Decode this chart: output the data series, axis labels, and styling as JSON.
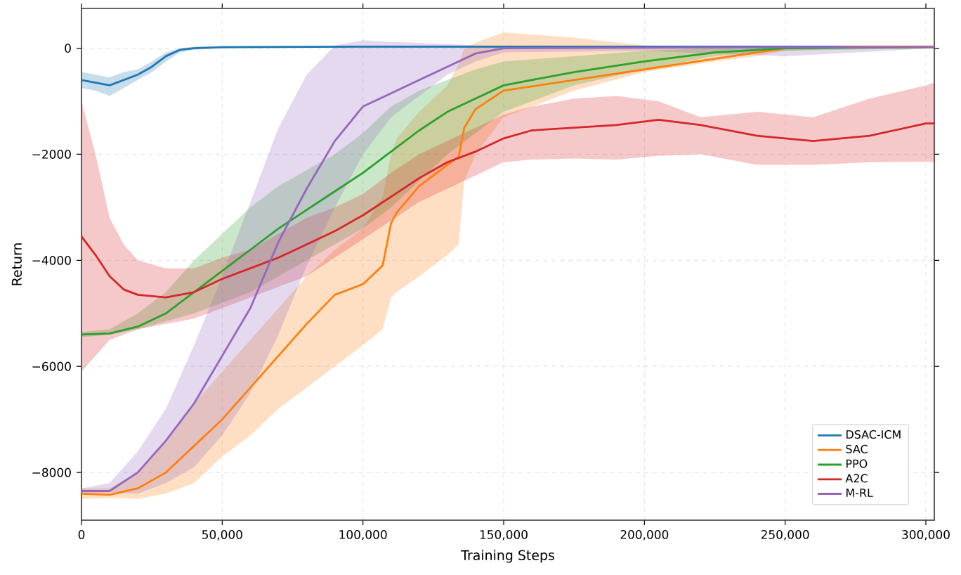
{
  "chart_data": {
    "type": "line",
    "xlabel": "Training Steps",
    "ylabel": "Return",
    "xlim": [
      0,
      303000
    ],
    "ylim": [
      -8900,
      750
    ],
    "xticks": [
      {
        "value": 0,
        "label": "0"
      },
      {
        "value": 50000,
        "label": "50,000"
      },
      {
        "value": 100000,
        "label": "100,000"
      },
      {
        "value": 150000,
        "label": "150,000"
      },
      {
        "value": 200000,
        "label": "200,000"
      },
      {
        "value": 250000,
        "label": "250,000"
      },
      {
        "value": 300000,
        "label": "300,000"
      }
    ],
    "yticks": [
      {
        "value": -8000,
        "label": "−8000"
      },
      {
        "value": -6000,
        "label": "−6000"
      },
      {
        "value": -4000,
        "label": "−4000"
      },
      {
        "value": -2000,
        "label": "−2000"
      },
      {
        "value": 0,
        "label": "0"
      }
    ],
    "grid": true,
    "legend": "bottom right",
    "line_style": "solid",
    "marker": "none",
    "series": [
      {
        "name": "DSAC-ICM",
        "color": "#1f77b4",
        "x": [
          0,
          5000,
          10000,
          15000,
          20000,
          25000,
          30000,
          35000,
          40000,
          50000,
          100000,
          150000,
          200000,
          250000,
          303000
        ],
        "values": [
          -600,
          -650,
          -700,
          -600,
          -500,
          -350,
          -150,
          -30,
          0,
          20,
          30,
          30,
          30,
          30,
          30
        ],
        "lower": [
          -750,
          -800,
          -900,
          -750,
          -600,
          -450,
          -250,
          -80,
          -30,
          0,
          10,
          10,
          10,
          10,
          10
        ],
        "upper": [
          -450,
          -500,
          -550,
          -450,
          -400,
          -250,
          -80,
          0,
          30,
          40,
          50,
          50,
          50,
          50,
          50
        ]
      },
      {
        "name": "SAC",
        "color": "#ff7f0e",
        "x": [
          0,
          10000,
          20000,
          30000,
          40000,
          50000,
          60000,
          70000,
          80000,
          90000,
          100000,
          107000,
          110000,
          112000,
          120000,
          130000,
          134000,
          136000,
          140000,
          150000,
          175000,
          200000,
          225000,
          240000,
          250000,
          275000,
          303000
        ],
        "values": [
          -8400,
          -8420,
          -8300,
          -8000,
          -7500,
          -7000,
          -6400,
          -5800,
          -5200,
          -4650,
          -4450,
          -4100,
          -3300,
          -3100,
          -2600,
          -2200,
          -2050,
          -1500,
          -1150,
          -800,
          -600,
          -400,
          -200,
          -80,
          0,
          30,
          30
        ],
        "lower": [
          -8500,
          -8480,
          -8500,
          -8400,
          -8200,
          -7700,
          -7300,
          -6800,
          -6400,
          -6000,
          -5600,
          -5300,
          -4700,
          -4600,
          -4300,
          -3900,
          -3700,
          -2500,
          -2000,
          -1300,
          -800,
          -450,
          -250,
          -150,
          -50,
          0,
          0
        ],
        "upper": [
          -8300,
          -8300,
          -8000,
          -7400,
          -6700,
          -6100,
          -5500,
          -4900,
          -4300,
          -3800,
          -3400,
          -2800,
          -2000,
          -1700,
          -1200,
          -700,
          -300,
          0,
          100,
          300,
          200,
          50,
          30,
          30,
          40,
          50,
          50
        ]
      },
      {
        "name": "PPO",
        "color": "#2ca02c",
        "x": [
          0,
          10000,
          20000,
          30000,
          40000,
          50000,
          60000,
          70000,
          80000,
          90000,
          100000,
          110000,
          120000,
          130000,
          140000,
          150000,
          175000,
          200000,
          225000,
          250000,
          303000
        ],
        "values": [
          -5400,
          -5380,
          -5250,
          -5000,
          -4600,
          -4200,
          -3800,
          -3400,
          -3050,
          -2700,
          -2350,
          -1950,
          -1550,
          -1200,
          -950,
          -700,
          -450,
          -250,
          -80,
          0,
          20
        ],
        "lower": [
          -5450,
          -5400,
          -5300,
          -5150,
          -5000,
          -4800,
          -4600,
          -4300,
          -4000,
          -3700,
          -3400,
          -3000,
          -2500,
          -2000,
          -1600,
          -1200,
          -700,
          -400,
          -150,
          -50,
          0
        ],
        "upper": [
          -5350,
          -5300,
          -5000,
          -4600,
          -4000,
          -3500,
          -3000,
          -2600,
          -2300,
          -2000,
          -1600,
          -1100,
          -800,
          -600,
          -400,
          -250,
          -150,
          -50,
          0,
          30,
          40
        ]
      },
      {
        "name": "A2C",
        "color": "#d62728",
        "x": [
          0,
          5000,
          10000,
          15000,
          20000,
          30000,
          40000,
          50000,
          60000,
          70000,
          80000,
          90000,
          100000,
          110000,
          120000,
          130000,
          140000,
          150000,
          160000,
          175000,
          190000,
          205000,
          220000,
          240000,
          260000,
          280000,
          300000,
          303000
        ],
        "values": [
          -3550,
          -3900,
          -4300,
          -4550,
          -4650,
          -4700,
          -4600,
          -4350,
          -4150,
          -3950,
          -3700,
          -3450,
          -3150,
          -2800,
          -2450,
          -2150,
          -1950,
          -1700,
          -1550,
          -1500,
          -1450,
          -1350,
          -1450,
          -1650,
          -1750,
          -1650,
          -1420,
          -1420
        ],
        "lower": [
          -6100,
          -5800,
          -5500,
          -5400,
          -5300,
          -5200,
          -5100,
          -4900,
          -4700,
          -4500,
          -4300,
          -3950,
          -3600,
          -3250,
          -2900,
          -2650,
          -2400,
          -2150,
          -2100,
          -2080,
          -2100,
          -2030,
          -2000,
          -2200,
          -2200,
          -2150,
          -2140,
          -2150
        ],
        "upper": [
          -1000,
          -2000,
          -3200,
          -3700,
          -4000,
          -4150,
          -4150,
          -3950,
          -3800,
          -3500,
          -3200,
          -3000,
          -2750,
          -2350,
          -2000,
          -1750,
          -1500,
          -1250,
          -1100,
          -950,
          -900,
          -1000,
          -1300,
          -1200,
          -1300,
          -950,
          -700,
          -650
        ]
      },
      {
        "name": "M-RL",
        "color": "#9467bd",
        "x": [
          0,
          10000,
          20000,
          30000,
          40000,
          50000,
          60000,
          70000,
          80000,
          90000,
          100000,
          110000,
          120000,
          130000,
          140000,
          150000,
          200000,
          250000,
          303000
        ],
        "values": [
          -8350,
          -8350,
          -8000,
          -7400,
          -6700,
          -5800,
          -4900,
          -3650,
          -2650,
          -1750,
          -1100,
          -850,
          -600,
          -350,
          -100,
          0,
          10,
          20,
          20
        ],
        "lower": [
          -8400,
          -8380,
          -8400,
          -8200,
          -7900,
          -7300,
          -6500,
          -5400,
          -4100,
          -3000,
          -2000,
          -1300,
          -900,
          -500,
          -250,
          -80,
          -50,
          -150,
          0
        ],
        "upper": [
          -8300,
          -8200,
          -7600,
          -6800,
          -5600,
          -4300,
          -2900,
          -1500,
          -500,
          50,
          150,
          120,
          100,
          80,
          50,
          40,
          30,
          35,
          40
        ]
      }
    ]
  }
}
